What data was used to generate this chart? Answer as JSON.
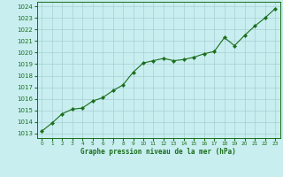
{
  "x": [
    0,
    1,
    2,
    3,
    4,
    5,
    6,
    7,
    8,
    9,
    10,
    11,
    12,
    13,
    14,
    15,
    16,
    17,
    18,
    19,
    20,
    21,
    22,
    23
  ],
  "y": [
    1013.2,
    1013.9,
    1014.7,
    1015.1,
    1015.2,
    1015.8,
    1016.1,
    1016.7,
    1017.2,
    1018.3,
    1019.1,
    1019.3,
    1019.5,
    1019.3,
    1019.4,
    1019.6,
    1019.9,
    1020.1,
    1021.3,
    1020.6,
    1021.5,
    1022.3,
    1023.0,
    1023.8
  ],
  "line_color": "#1a6e1a",
  "marker": "D",
  "marker_size": 2.2,
  "background_color": "#c8eef0",
  "grid_color": "#a8cfd4",
  "ylabel_ticks": [
    1013,
    1014,
    1015,
    1016,
    1017,
    1018,
    1019,
    1020,
    1021,
    1022,
    1023,
    1024
  ],
  "xlabel": "Graphe pression niveau de la mer (hPa)",
  "xlabel_color": "#1a6e1a",
  "tick_color": "#1a6e1a",
  "ylim": [
    1012.6,
    1024.4
  ],
  "xlim": [
    -0.5,
    23.5
  ]
}
